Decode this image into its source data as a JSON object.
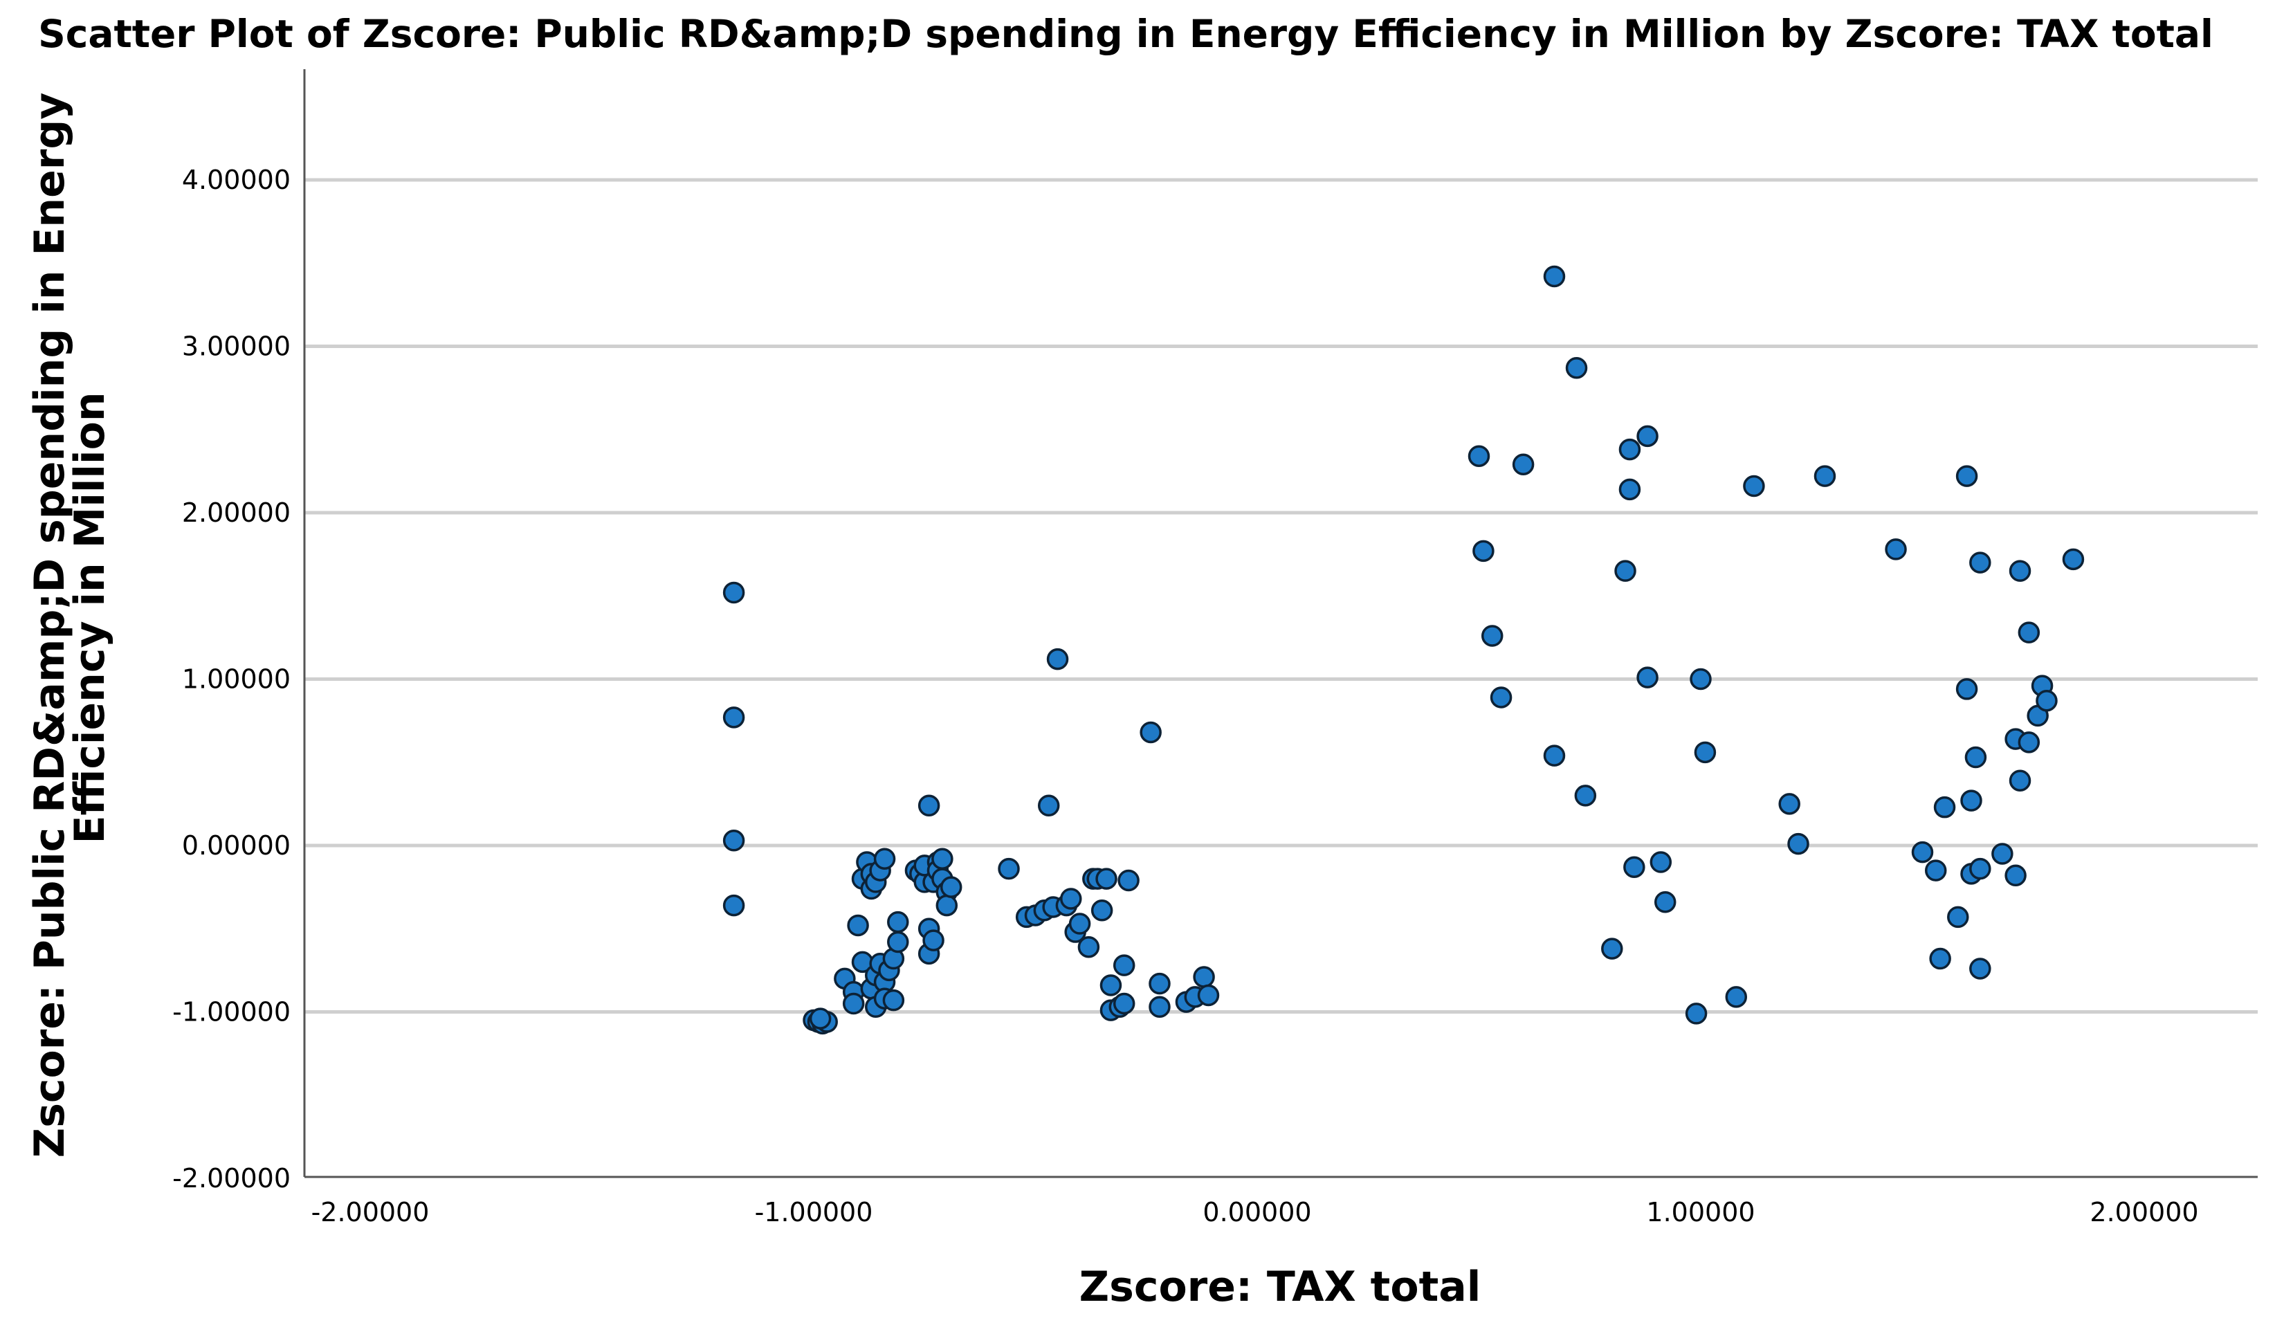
{
  "chart_data": {
    "type": "scatter",
    "title": "Scatter Plot of Zscore:  Public RD&amp;D spending in  Energy Efficiency in Million by Zscore:  TAX total",
    "xlabel": "Zscore:  TAX total",
    "ylabel_lines": [
      "Zscore:   Public RD&amp;D spending in   Energy",
      "Efficiency in Million"
    ],
    "xlim": [
      -2.2,
      2.2
    ],
    "ylim": [
      -2.0,
      4.6
    ],
    "x_ticks": [
      -2,
      -1,
      0,
      1,
      2
    ],
    "x_tick_labels": [
      "-2.00000",
      "-1.00000",
      "0.00000",
      "1.00000",
      "2.00000"
    ],
    "y_ticks": [
      -2,
      -1,
      0,
      1,
      2,
      3,
      4
    ],
    "y_tick_labels": [
      "-2.00000",
      "-1.00000",
      "0.00000",
      "1.00000",
      "2.00000",
      "3.00000",
      "4.00000"
    ],
    "grid": "horizontal",
    "marker_color": "#1f7ac7",
    "series": [
      {
        "name": "points",
        "points": [
          [
            -1.18,
            1.52
          ],
          [
            -1.18,
            0.77
          ],
          [
            -1.18,
            0.03
          ],
          [
            -1.18,
            -0.36
          ],
          [
            -1.0,
            -1.05
          ],
          [
            -0.99,
            -1.06
          ],
          [
            -0.98,
            -1.07
          ],
          [
            -0.97,
            -1.06
          ],
          [
            -0.985,
            -1.04
          ],
          [
            -0.93,
            -0.8
          ],
          [
            -0.91,
            -0.88
          ],
          [
            -0.91,
            -0.95
          ],
          [
            -0.9,
            -0.48
          ],
          [
            -0.89,
            -0.2
          ],
          [
            -0.89,
            -0.7
          ],
          [
            -0.88,
            -0.1
          ],
          [
            -0.87,
            -0.17
          ],
          [
            -0.87,
            -0.26
          ],
          [
            -0.87,
            -0.86
          ],
          [
            -0.86,
            -0.22
          ],
          [
            -0.86,
            -0.78
          ],
          [
            -0.86,
            -0.97
          ],
          [
            -0.85,
            -0.15
          ],
          [
            -0.85,
            -0.71
          ],
          [
            -0.84,
            -0.08
          ],
          [
            -0.84,
            -0.82
          ],
          [
            -0.84,
            -0.92
          ],
          [
            -0.83,
            -0.75
          ],
          [
            -0.82,
            -0.93
          ],
          [
            -0.82,
            -0.68
          ],
          [
            -0.81,
            -0.58
          ],
          [
            -0.81,
            -0.46
          ],
          [
            -0.77,
            -0.15
          ],
          [
            -0.76,
            -0.17
          ],
          [
            -0.75,
            -0.22
          ],
          [
            -0.75,
            -0.12
          ],
          [
            -0.74,
            -0.5
          ],
          [
            -0.74,
            -0.65
          ],
          [
            -0.74,
            0.24
          ],
          [
            -0.73,
            -0.57
          ],
          [
            -0.73,
            -0.22
          ],
          [
            -0.72,
            -0.1
          ],
          [
            -0.72,
            -0.15
          ],
          [
            -0.71,
            -0.08
          ],
          [
            -0.71,
            -0.2
          ],
          [
            -0.7,
            -0.28
          ],
          [
            -0.7,
            -0.36
          ],
          [
            -0.69,
            -0.25
          ],
          [
            -0.56,
            -0.14
          ],
          [
            -0.52,
            -0.43
          ],
          [
            -0.5,
            -0.42
          ],
          [
            -0.48,
            -0.39
          ],
          [
            -0.47,
            0.24
          ],
          [
            -0.46,
            -0.37
          ],
          [
            -0.45,
            1.12
          ],
          [
            -0.43,
            -0.36
          ],
          [
            -0.42,
            -0.32
          ],
          [
            -0.41,
            -0.52
          ],
          [
            -0.4,
            -0.47
          ],
          [
            -0.38,
            -0.61
          ],
          [
            -0.37,
            -0.2
          ],
          [
            -0.36,
            -0.2
          ],
          [
            -0.35,
            -0.39
          ],
          [
            -0.34,
            -0.2
          ],
          [
            -0.33,
            -0.84
          ],
          [
            -0.33,
            -0.99
          ],
          [
            -0.31,
            -0.97
          ],
          [
            -0.3,
            -0.72
          ],
          [
            -0.3,
            -0.95
          ],
          [
            -0.29,
            -0.21
          ],
          [
            -0.24,
            0.68
          ],
          [
            -0.22,
            -0.83
          ],
          [
            -0.22,
            -0.97
          ],
          [
            -0.16,
            -0.94
          ],
          [
            -0.14,
            -0.91
          ],
          [
            -0.12,
            -0.79
          ],
          [
            -0.11,
            -0.9
          ],
          [
            0.5,
            2.34
          ],
          [
            0.51,
            1.77
          ],
          [
            0.53,
            1.26
          ],
          [
            0.55,
            0.89
          ],
          [
            0.6,
            2.29
          ],
          [
            0.67,
            3.42
          ],
          [
            0.67,
            0.54
          ],
          [
            0.72,
            2.87
          ],
          [
            0.74,
            0.3
          ],
          [
            0.8,
            -0.62
          ],
          [
            0.83,
            1.65
          ],
          [
            0.84,
            2.38
          ],
          [
            0.84,
            2.14
          ],
          [
            0.85,
            -0.13
          ],
          [
            0.88,
            2.46
          ],
          [
            0.88,
            1.01
          ],
          [
            0.91,
            -0.1
          ],
          [
            0.92,
            -0.34
          ],
          [
            0.99,
            -1.01
          ],
          [
            1.0,
            1.0
          ],
          [
            1.01,
            0.56
          ],
          [
            1.08,
            -0.91
          ],
          [
            1.12,
            2.16
          ],
          [
            1.2,
            0.25
          ],
          [
            1.22,
            0.01
          ],
          [
            1.28,
            2.22
          ],
          [
            1.44,
            1.78
          ],
          [
            1.5,
            -0.04
          ],
          [
            1.53,
            -0.15
          ],
          [
            1.54,
            -0.68
          ],
          [
            1.55,
            0.23
          ],
          [
            1.58,
            -0.43
          ],
          [
            1.6,
            0.94
          ],
          [
            1.6,
            2.22
          ],
          [
            1.61,
            -0.17
          ],
          [
            1.61,
            0.27
          ],
          [
            1.62,
            0.53
          ],
          [
            1.63,
            1.7
          ],
          [
            1.63,
            -0.14
          ],
          [
            1.63,
            -0.74
          ],
          [
            1.68,
            -0.05
          ],
          [
            1.71,
            0.64
          ],
          [
            1.71,
            -0.18
          ],
          [
            1.72,
            0.39
          ],
          [
            1.72,
            1.65
          ],
          [
            1.74,
            1.28
          ],
          [
            1.74,
            0.62
          ],
          [
            1.76,
            0.78
          ],
          [
            1.77,
            0.96
          ],
          [
            1.78,
            0.87
          ],
          [
            1.84,
            1.72
          ]
        ]
      }
    ]
  }
}
